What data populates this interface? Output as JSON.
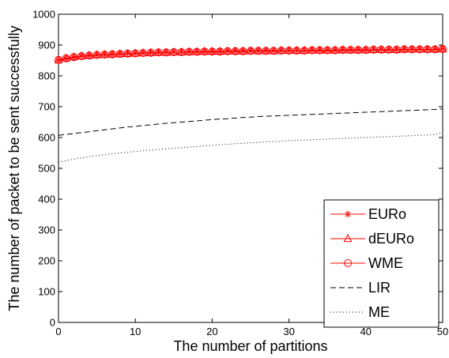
{
  "chart_data": {
    "type": "line",
    "xlabel": "The number of partitions",
    "ylabel": "The number of packet to be sent successfully",
    "xlim": [
      0,
      50
    ],
    "ylim": [
      0,
      1000
    ],
    "xticks": [
      "0",
      "10",
      "20",
      "30",
      "40",
      "50"
    ],
    "yticks": [
      "0",
      "100",
      "200",
      "300",
      "400",
      "500",
      "600",
      "700",
      "800",
      "900",
      "1000"
    ],
    "grid": false,
    "legend_position": "bottom-right",
    "x": [
      0,
      1,
      2,
      3,
      4,
      5,
      6,
      7,
      8,
      9,
      10,
      11,
      12,
      13,
      14,
      15,
      16,
      17,
      18,
      19,
      20,
      21,
      22,
      23,
      24,
      25,
      26,
      27,
      28,
      29,
      30,
      31,
      32,
      33,
      34,
      35,
      36,
      37,
      38,
      39,
      40,
      41,
      42,
      43,
      44,
      45,
      46,
      47,
      48,
      49,
      50
    ],
    "series": [
      {
        "name": "EURo",
        "color": "#ff0000",
        "style": "solid",
        "marker": "asterisk",
        "values": [
          850,
          856,
          860,
          864,
          866,
          868,
          869,
          870,
          871,
          872,
          873,
          874,
          875,
          876,
          876,
          877,
          877,
          878,
          878,
          879,
          879,
          879,
          880,
          880,
          880,
          881,
          881,
          881,
          881,
          882,
          882,
          882,
          882,
          883,
          883,
          883,
          883,
          884,
          884,
          884,
          884,
          885,
          885,
          885,
          885,
          886,
          886,
          886,
          886,
          886,
          887
        ]
      },
      {
        "name": "dEURo",
        "color": "#ff0000",
        "style": "solid",
        "marker": "triangle",
        "values": [
          851,
          857,
          861,
          864,
          866,
          868,
          869,
          870,
          871,
          872,
          873,
          874,
          875,
          876,
          876,
          877,
          877,
          878,
          878,
          879,
          879,
          879,
          880,
          880,
          880,
          881,
          881,
          881,
          881,
          882,
          882,
          882,
          882,
          883,
          883,
          883,
          883,
          884,
          884,
          884,
          884,
          885,
          885,
          885,
          885,
          886,
          886,
          886,
          886,
          886,
          887
        ]
      },
      {
        "name": "WME",
        "color": "#ff0000",
        "style": "solid",
        "marker": "circle",
        "values": [
          852,
          857,
          861,
          864,
          866,
          868,
          869,
          870,
          871,
          872,
          873,
          874,
          875,
          876,
          876,
          877,
          877,
          878,
          878,
          879,
          879,
          879,
          880,
          880,
          880,
          881,
          881,
          881,
          881,
          882,
          882,
          882,
          882,
          883,
          883,
          883,
          883,
          884,
          884,
          884,
          884,
          885,
          885,
          885,
          885,
          886,
          886,
          886,
          886,
          886,
          887
        ]
      },
      {
        "name": "LIR",
        "color": "#000000",
        "style": "dashed",
        "marker": "none",
        "values": [
          607,
          610,
          613,
          616,
          619,
          622,
          625,
          628,
          631,
          634,
          636,
          639,
          641,
          644,
          646,
          648,
          650,
          652,
          654,
          656,
          658,
          660,
          661,
          663,
          665,
          666,
          668,
          669,
          670,
          671,
          672,
          673,
          674,
          675,
          676,
          677,
          678,
          679,
          680,
          681,
          682,
          683,
          684,
          685,
          686,
          687,
          688,
          689,
          690,
          691,
          693
        ]
      },
      {
        "name": "ME",
        "color": "#000000",
        "style": "dotted",
        "marker": "none",
        "values": [
          520,
          525,
          530,
          534,
          538,
          541,
          544,
          547,
          550,
          552,
          555,
          557,
          559,
          561,
          563,
          565,
          567,
          569,
          571,
          573,
          575,
          577,
          578,
          580,
          581,
          583,
          584,
          586,
          587,
          588,
          590,
          591,
          592,
          593,
          594,
          595,
          596,
          597,
          598,
          599,
          600,
          601,
          602,
          603,
          604,
          605,
          606,
          607,
          608,
          609,
          618
        ]
      }
    ]
  }
}
